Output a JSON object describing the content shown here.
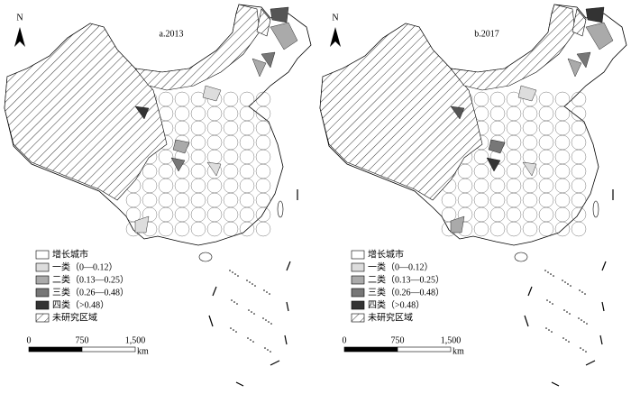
{
  "panels": [
    {
      "north": "N",
      "title": "a.2013",
      "legend": [
        "增长城市",
        "一类（0—0.12）",
        "二类（0.13—0.25）",
        "三类（0.26—0.48）",
        "四类（>0.48）",
        "未研究区域"
      ],
      "scale": {
        "ticks": [
          "0",
          "750",
          "1,500"
        ],
        "unit": "km"
      }
    },
    {
      "north": "N",
      "title": "b.2017",
      "legend": [
        "增长城市",
        "一类（0—0.12）",
        "二类（0.13—0.25）",
        "三类（0.26—0.48）",
        "四类（>0.48）",
        "未研究区域"
      ],
      "scale": {
        "ticks": [
          "0",
          "750",
          "1,500"
        ],
        "unit": "km"
      }
    }
  ]
}
